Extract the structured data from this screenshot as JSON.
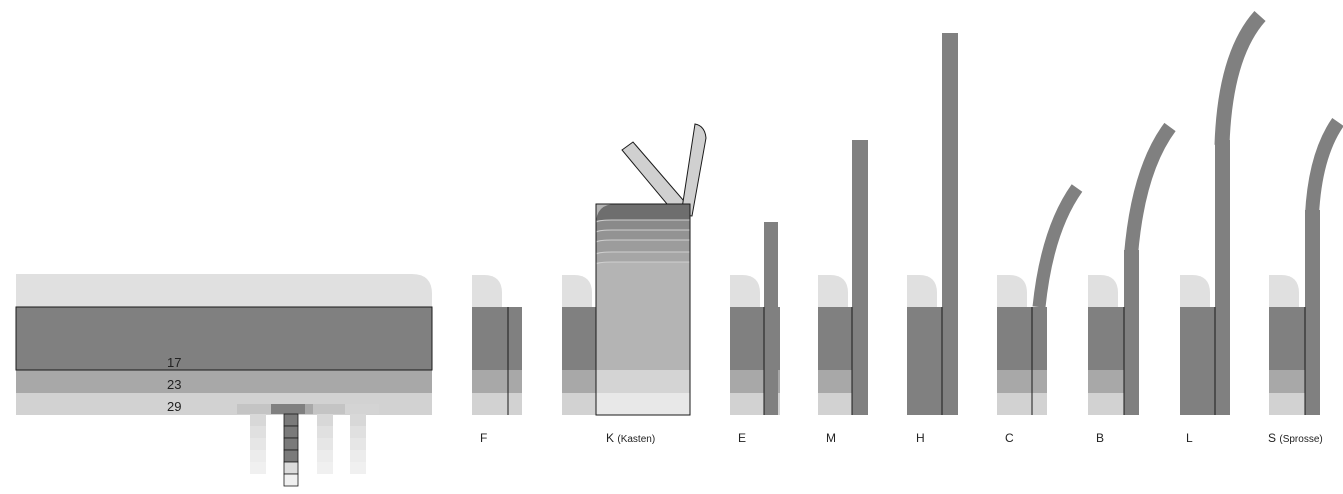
{
  "diagram": {
    "colors": {
      "dark": "#808080",
      "medium": "#a8a8a8",
      "light": "#d2d2d2",
      "cap": "#e0e0e0",
      "outline": "#1a1a1a",
      "kasten_fill": "#b4b4b4",
      "kasten_top": "#6e6e6e",
      "lid": "#d0d0d0"
    },
    "layer_labels": [
      "17",
      "23",
      "29"
    ],
    "profiles": [
      {
        "letter": "F",
        "note": ""
      },
      {
        "letter": "K",
        "note": "(Kasten)"
      },
      {
        "letter": "E",
        "note": ""
      },
      {
        "letter": "M",
        "note": ""
      },
      {
        "letter": "H",
        "note": ""
      },
      {
        "letter": "C",
        "note": ""
      },
      {
        "letter": "B",
        "note": ""
      },
      {
        "letter": "L",
        "note": ""
      },
      {
        "letter": "S",
        "note": "(Sprosse)"
      }
    ]
  }
}
